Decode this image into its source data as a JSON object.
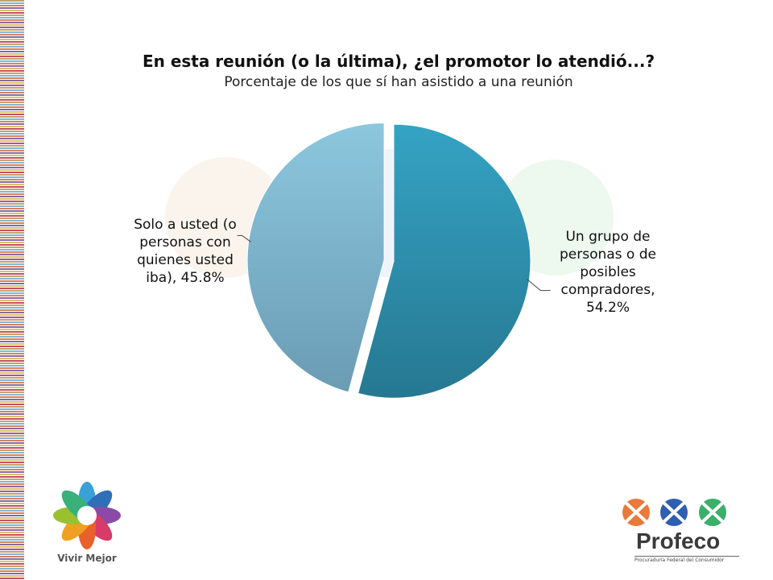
{
  "chart_data": {
    "type": "pie",
    "title": "En esta reunión (o la última), ¿el promotor lo atendió...?",
    "subtitle": "Porcentaje de los que sí han asistido a una reunión",
    "slices": [
      {
        "label": "Un grupo de personas o de posibles compradores",
        "value": 54.2,
        "display": "Un grupo de\npersonas o de\nposibles\ncompradores,\n54.2%",
        "color": "#2f8fb0",
        "exploded": false
      },
      {
        "label": "Solo a usted (o personas con quienes usted iba)",
        "value": 45.8,
        "display": "Solo a usted (o\npersonas con\nquienes usted\niba), 45.8%",
        "color": "#7ab6d0",
        "exploded": true
      }
    ],
    "start_angle_deg": 0,
    "direction": "clockwise",
    "legend": "none"
  },
  "branding": {
    "left_logo_text": "Vivir Mejor",
    "right_logo_text": "Profeco",
    "right_logo_subtext": "Procuraduría Federal del Consumidor"
  },
  "colors": {
    "slice_dark": "#2f8fb0",
    "slice_light": "#7ab6d0",
    "stripe_accent": "#c9a06b"
  }
}
